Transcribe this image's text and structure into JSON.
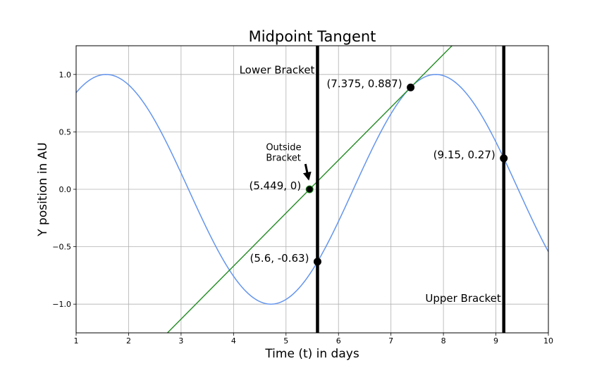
{
  "chart_data": {
    "type": "line",
    "title": "Midpoint Tangent",
    "xlabel": "Time (t) in days",
    "ylabel": "Y position in AU",
    "xlim": [
      1,
      10
    ],
    "ylim": [
      -1.25,
      1.25
    ],
    "grid": true,
    "x_ticks": [
      1,
      2,
      3,
      4,
      5,
      6,
      7,
      8,
      9,
      10
    ],
    "y_ticks": [
      -1.0,
      -0.5,
      0.0,
      0.5,
      1.0
    ],
    "x_tick_labels": [
      "1",
      "2",
      "3",
      "4",
      "5",
      "6",
      "7",
      "8",
      "9",
      "10"
    ],
    "y_tick_labels": [
      "−1.0",
      "−0.5",
      "0.0",
      "0.5",
      "1.0"
    ],
    "colors": {
      "curve": "#6495ed",
      "tangent": "#228b22",
      "bracket": "#000000",
      "grid": "#b0b0b0"
    },
    "series": [
      {
        "function": "sin(t)",
        "x": [
          1.0,
          1.5708,
          2.0,
          3.0,
          4.0,
          4.7124,
          5.0,
          5.6,
          6.0,
          7.0,
          7.375,
          7.854,
          8.0,
          9.0,
          9.15,
          10.0
        ],
        "y": [
          0.841,
          1.0,
          0.909,
          0.141,
          -0.757,
          -1.0,
          -0.959,
          -0.631,
          -0.279,
          0.657,
          0.887,
          1.0,
          0.989,
          0.412,
          0.27,
          -0.544
        ]
      },
      {
        "function": "tangent at t = 7.375",
        "x": [
          2.74,
          5.449,
          7.375,
          8.2
        ],
        "y": [
          -1.25,
          0.0,
          0.887,
          1.267
        ]
      }
    ],
    "vertical_lines": [
      {
        "x": 5.6,
        "label": "Lower Bracket",
        "label_y": 1.04
      },
      {
        "x": 9.15,
        "label": "Upper Bracket",
        "label_y": -0.95
      }
    ],
    "points": [
      {
        "x": 5.449,
        "y": 0.0,
        "label": "(5.449, 0)"
      },
      {
        "x": 5.6,
        "y": -0.63,
        "label": "(5.6, -0.63)"
      },
      {
        "x": 7.375,
        "y": 0.887,
        "label": "(7.375, 0.887)"
      },
      {
        "x": 9.15,
        "y": 0.27,
        "label": "(9.15, 0.27)"
      }
    ],
    "annotation": {
      "lines": [
        "Outside",
        "Bracket"
      ],
      "arrow_from": [
        5.37,
        0.22
      ],
      "arrow_to": [
        5.43,
        0.09
      ]
    }
  }
}
